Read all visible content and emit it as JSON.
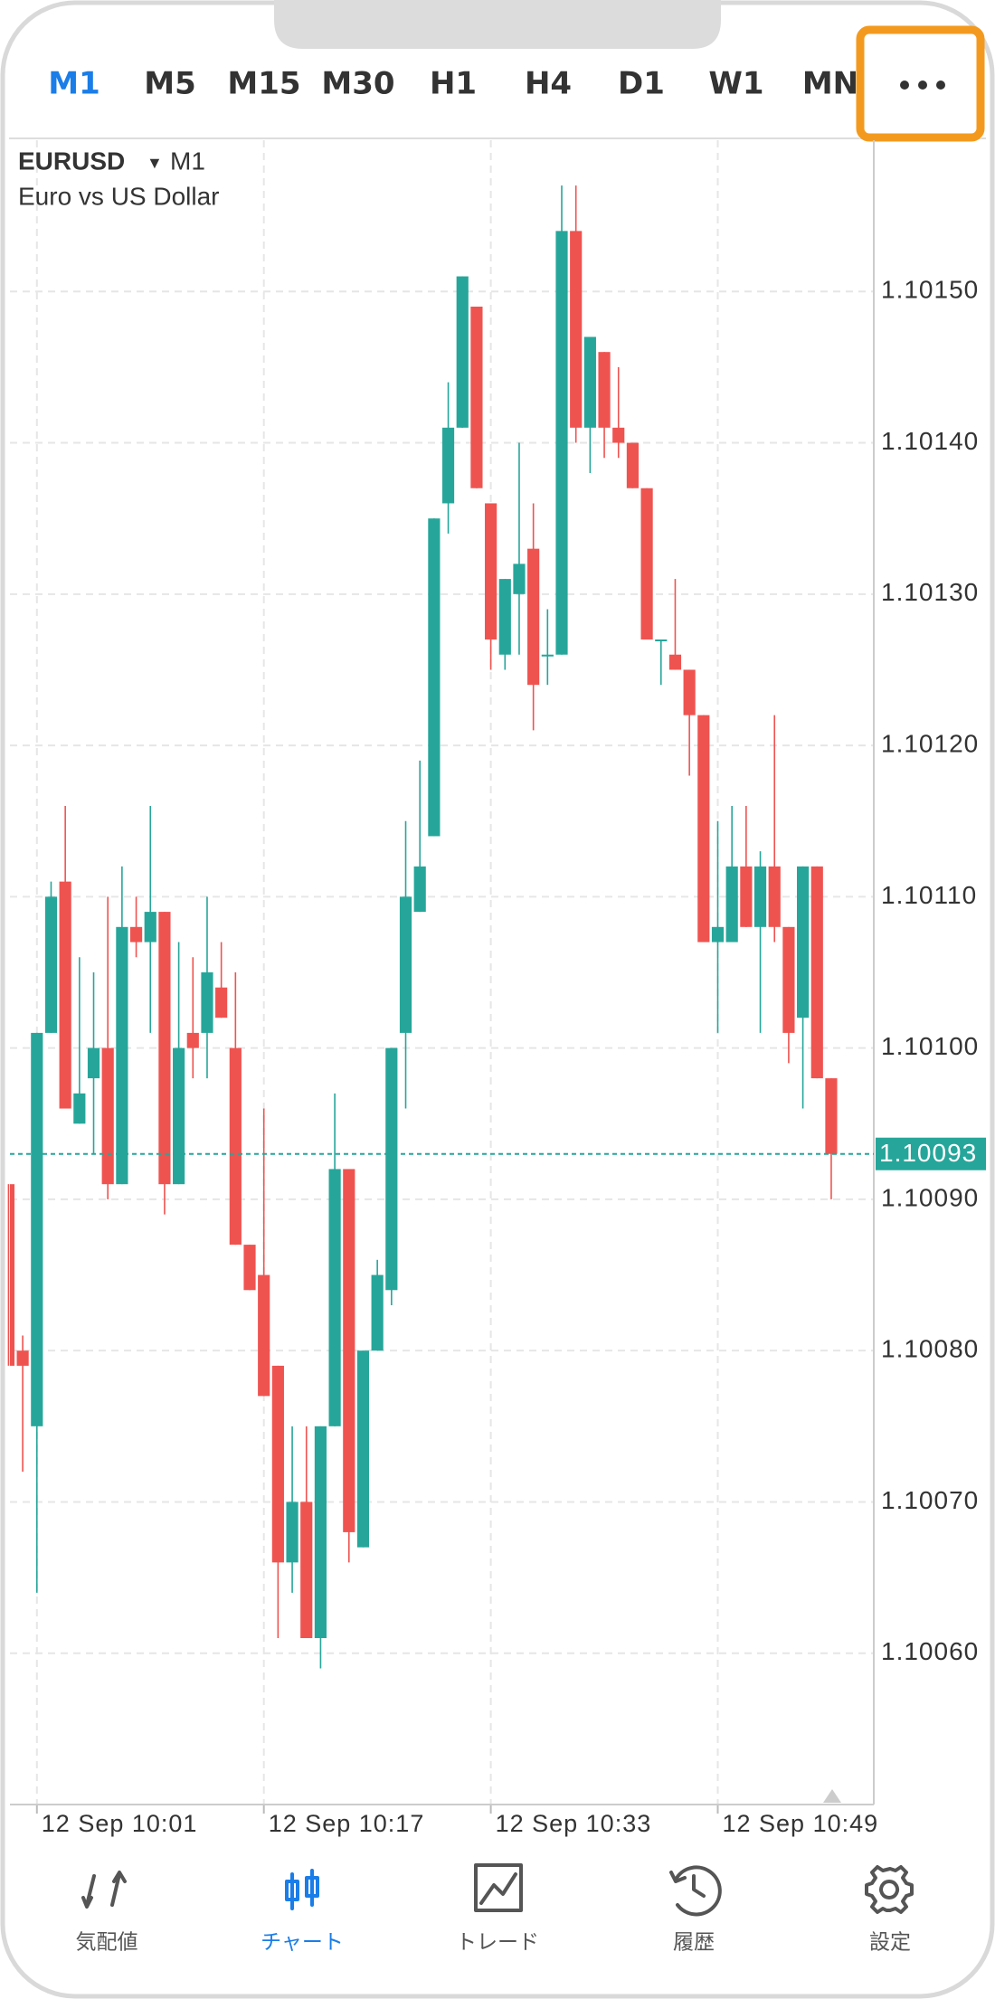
{
  "timeframes": [
    "M1",
    "M5",
    "M15",
    "M30",
    "H1",
    "H4",
    "D1",
    "W1",
    "MN"
  ],
  "active_timeframe": 0,
  "chart_data": {
    "type": "candlestick",
    "symbol": "EURUSD",
    "period": "M1",
    "description": "Euro vs US Dollar",
    "open": [
      1.10091,
      1.1008,
      1.10075,
      1.10101,
      1.10111,
      1.10095,
      1.10098,
      1.101,
      1.10091,
      1.10108,
      1.10107,
      1.10109,
      1.10091,
      1.10101,
      1.10101,
      1.10104,
      1.101,
      1.10087,
      1.10085,
      1.10079,
      1.10066,
      1.1007,
      1.10061,
      1.10075,
      1.10092,
      1.10067,
      1.1008,
      1.10084,
      1.10101,
      1.10109,
      1.10114,
      1.10136,
      1.10141,
      1.10149,
      1.10136,
      1.10126,
      1.1013,
      1.10133,
      1.10126,
      1.10126,
      1.10154,
      1.10141,
      1.10146,
      1.10141,
      1.1014,
      1.10137,
      1.10127,
      1.10126,
      1.10125,
      1.10122,
      1.10107,
      1.10107,
      1.10112,
      1.10108,
      1.10112,
      1.10108,
      1.10102,
      1.10112,
      1.10098
    ],
    "high": [
      1.10091,
      1.10081,
      1.10101,
      1.10111,
      1.10116,
      1.10106,
      1.10105,
      1.1011,
      1.10112,
      1.1011,
      1.10116,
      1.10109,
      1.10107,
      1.10106,
      1.1011,
      1.10107,
      1.10105,
      1.10087,
      1.10096,
      1.10079,
      1.10075,
      1.10075,
      1.10075,
      1.10097,
      1.10092,
      1.1008,
      1.10086,
      1.101,
      1.10115,
      1.10119,
      1.10135,
      1.10144,
      1.10151,
      1.10149,
      1.10136,
      1.10131,
      1.1014,
      1.10136,
      1.10129,
      1.10157,
      1.10157,
      1.10147,
      1.10146,
      1.10145,
      1.1014,
      1.10137,
      1.10127,
      1.10131,
      1.10125,
      1.10122,
      1.10115,
      1.10116,
      1.10116,
      1.10113,
      1.10122,
      1.10108,
      1.10112,
      1.10112,
      1.10098
    ],
    "low": [
      1.10079,
      1.10072,
      1.10064,
      1.10101,
      1.10096,
      1.10095,
      1.10093,
      1.1009,
      1.10091,
      1.10106,
      1.10101,
      1.10089,
      1.10091,
      1.10098,
      1.10098,
      1.10102,
      1.10087,
      1.10084,
      1.10077,
      1.10061,
      1.10064,
      1.10061,
      1.10059,
      1.10075,
      1.10066,
      1.10067,
      1.1008,
      1.10083,
      1.10096,
      1.10109,
      1.10114,
      1.10134,
      1.10141,
      1.10137,
      1.10125,
      1.10125,
      1.10126,
      1.10121,
      1.10124,
      1.10126,
      1.1014,
      1.10138,
      1.10139,
      1.10139,
      1.10137,
      1.10127,
      1.10124,
      1.10125,
      1.10118,
      1.10107,
      1.10101,
      1.10107,
      1.10108,
      1.10101,
      1.10107,
      1.10099,
      1.10096,
      1.10098,
      1.1009
    ],
    "close": [
      1.10079,
      1.10079,
      1.10101,
      1.1011,
      1.10096,
      1.10097,
      1.101,
      1.10091,
      1.10108,
      1.10107,
      1.10109,
      1.10091,
      1.101,
      1.101,
      1.10105,
      1.10102,
      1.10087,
      1.10084,
      1.10077,
      1.10066,
      1.1007,
      1.10061,
      1.10075,
      1.10092,
      1.10068,
      1.1008,
      1.10085,
      1.101,
      1.1011,
      1.10112,
      1.10135,
      1.10141,
      1.10151,
      1.10137,
      1.10127,
      1.10131,
      1.10132,
      1.10124,
      1.10126,
      1.10154,
      1.10141,
      1.10147,
      1.10141,
      1.1014,
      1.10137,
      1.10127,
      1.10127,
      1.10125,
      1.10122,
      1.10107,
      1.10108,
      1.10112,
      1.10108,
      1.10112,
      1.10108,
      1.10101,
      1.10112,
      1.10098,
      1.10093
    ],
    "up_color": "#26a69a",
    "down_color": "#ef5350",
    "ylim": [
      1.1005,
      1.1016
    ],
    "yticks": [
      {
        "value": 1.1006,
        "label": "1.10060"
      },
      {
        "value": 1.1007,
        "label": "1.10070"
      },
      {
        "value": 1.1008,
        "label": "1.10080"
      },
      {
        "value": 1.1009,
        "label": "1.10090"
      },
      {
        "value": 1.101,
        "label": "1.10100"
      },
      {
        "value": 1.1011,
        "label": "1.10110"
      },
      {
        "value": 1.1012,
        "label": "1.10120"
      },
      {
        "value": 1.1013,
        "label": "1.10130"
      },
      {
        "value": 1.1014,
        "label": "1.10140"
      },
      {
        "value": 1.1015,
        "label": "1.10150"
      }
    ],
    "xlim": [
      0.1,
      61
    ],
    "xticks": [
      {
        "value": 2,
        "label": "12 Sep 10:01"
      },
      {
        "value": 18,
        "label": "12 Sep 10:17"
      },
      {
        "value": 34,
        "label": "12 Sep 10:33"
      },
      {
        "value": 50,
        "label": "12 Sep 10:49"
      }
    ],
    "current_price": 1.10093,
    "grid": true
  },
  "nav": [
    "気配値",
    "チャート",
    "トレード",
    "履歴",
    "設定"
  ],
  "active_nav": 1
}
